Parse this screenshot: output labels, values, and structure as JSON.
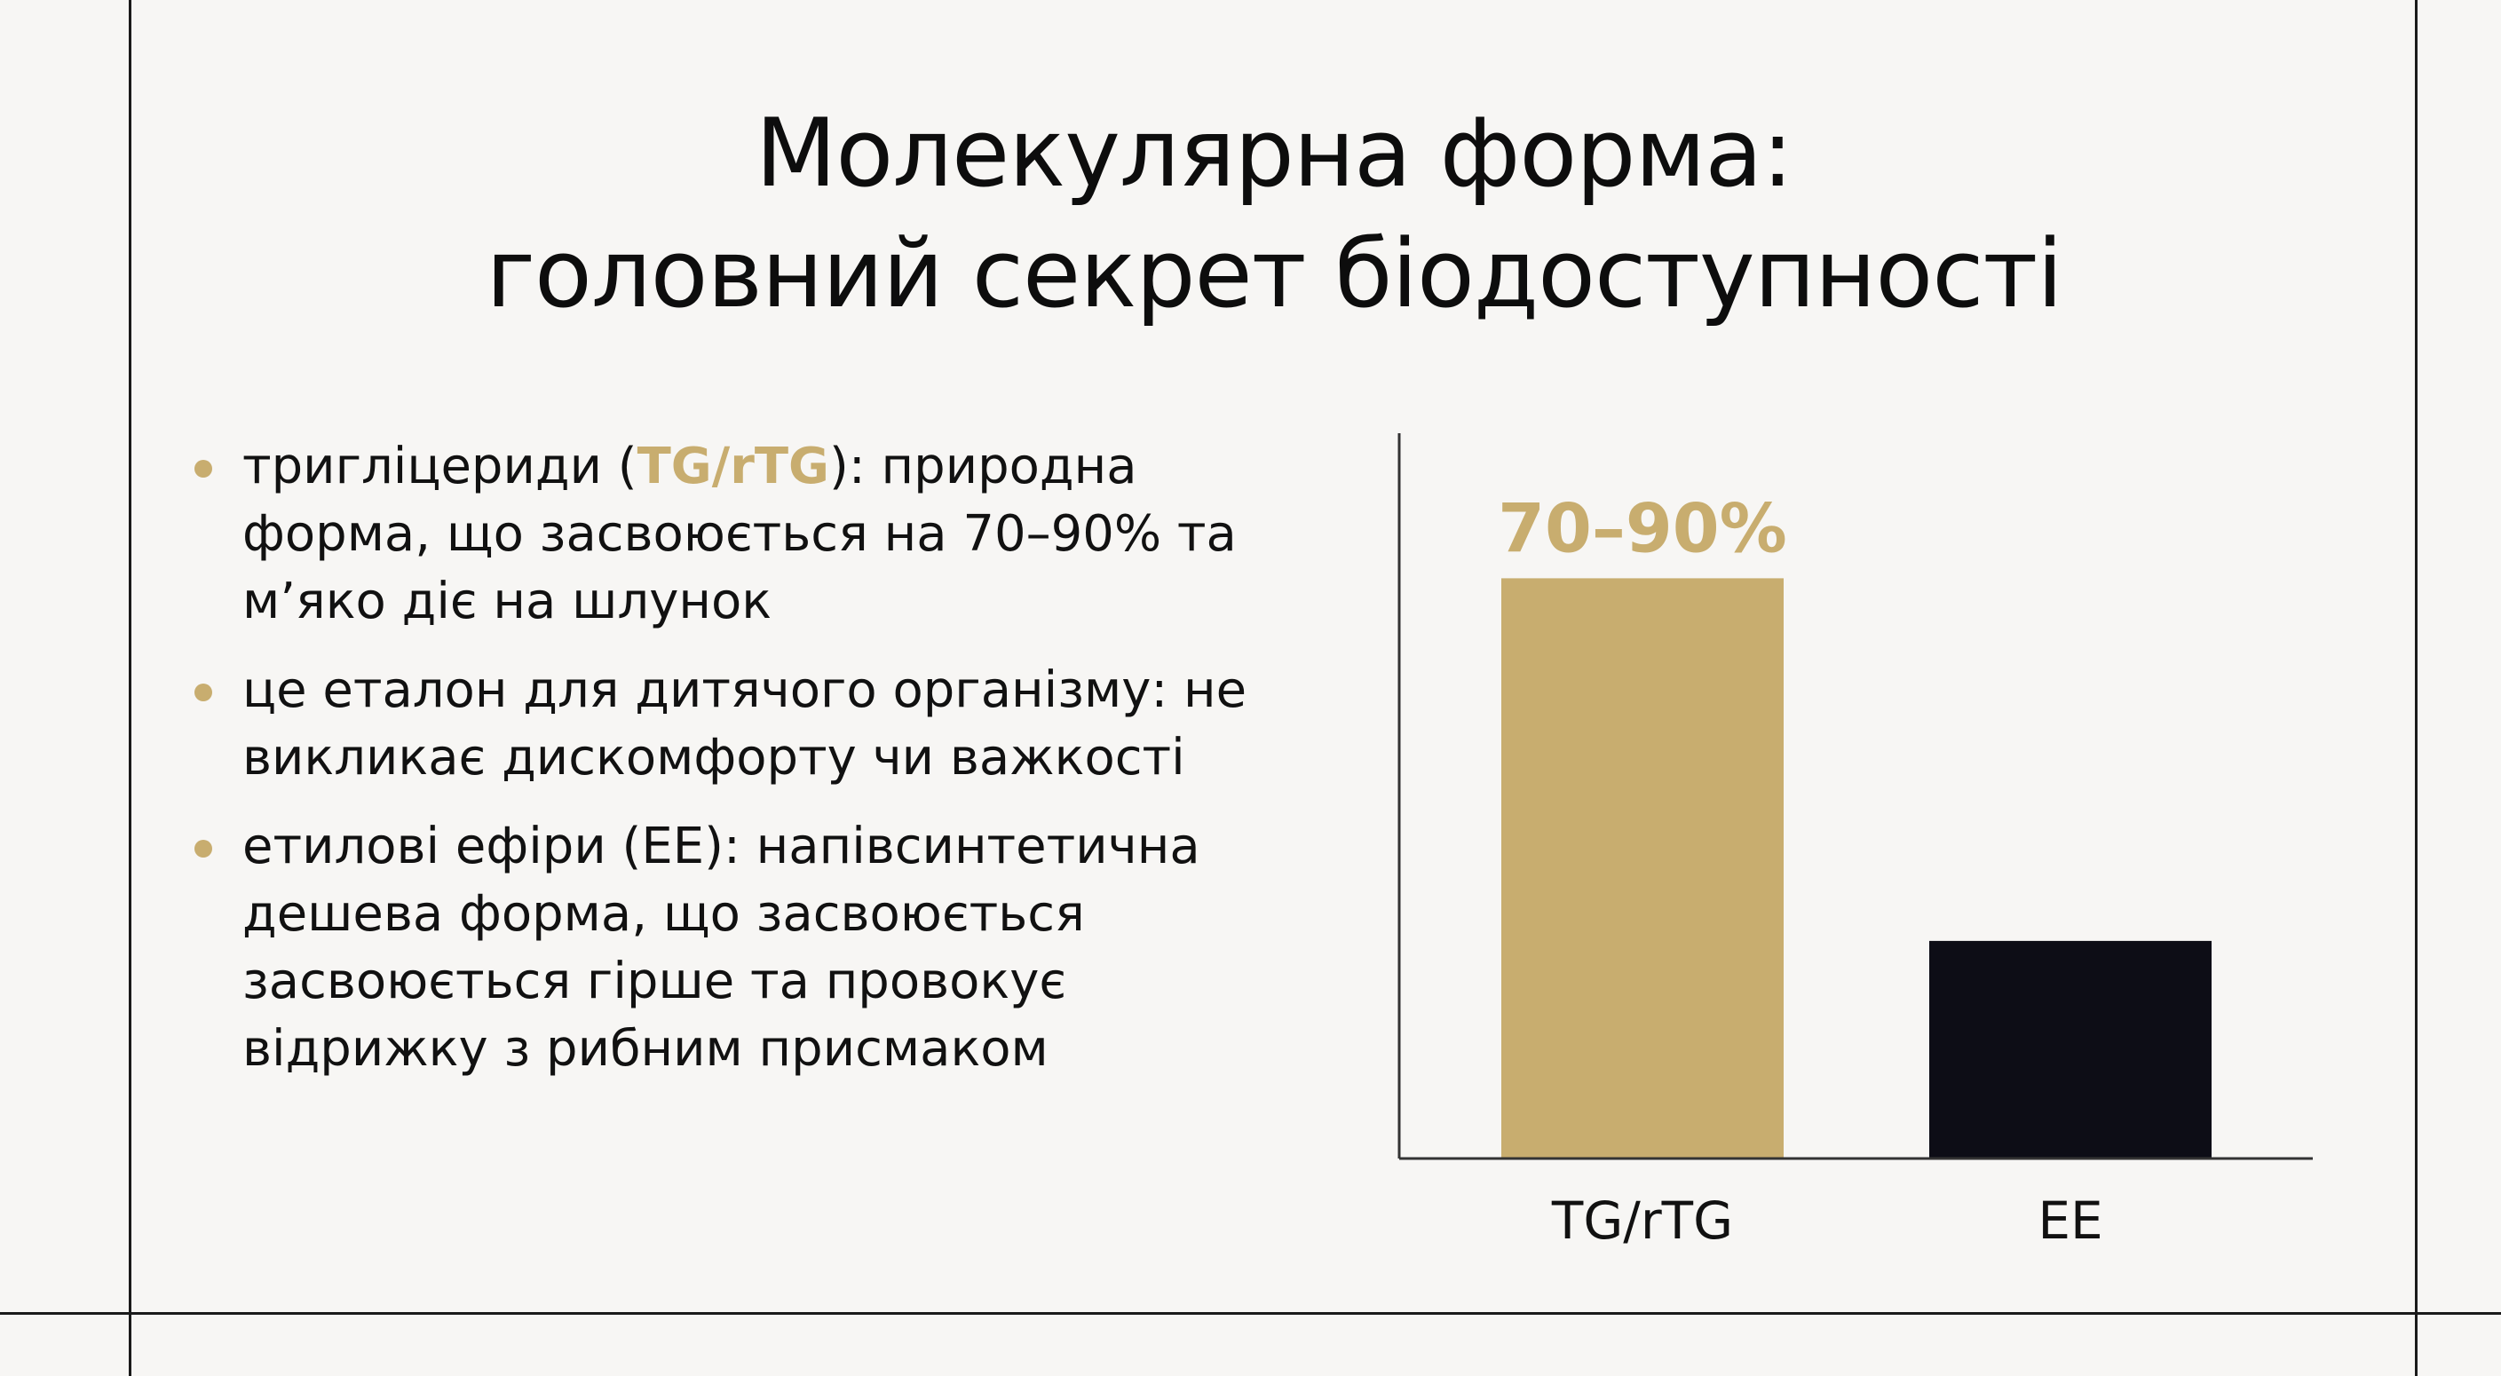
{
  "title": {
    "line1": "Молекулярна форма:",
    "line2": "головний секрет біодоступності"
  },
  "bullets": [
    {
      "before": "тригліцериди (",
      "accent": "TG/rTG",
      "after": "): природна форма, що засвоюється на 70–90% та м’яко діє на шлунок"
    },
    {
      "before": "це еталон для дитячого організму: не викликає дискомфорту чи важкості",
      "accent": "",
      "after": ""
    },
    {
      "before": "етилові ефіри (EE): напівсинтетична дешева форма, що засвоюється засвоюється гірше та провокує відрижку з рибним присмаком",
      "accent": "",
      "after": ""
    }
  ],
  "colors": {
    "accent": "#c8ad6f",
    "dark": "#0d0d16",
    "text": "#111111",
    "background": "#f7f6f4"
  },
  "chart_data": {
    "type": "bar",
    "categories": [
      "TG/rTG",
      "EE"
    ],
    "values": [
      80,
      30
    ],
    "data_labels": [
      "70–90%",
      ""
    ],
    "bar_colors": [
      "#c8ad6f",
      "#0d0d16"
    ],
    "ylim": [
      0,
      100
    ],
    "grid": false,
    "title": "",
    "xlabel": "",
    "ylabel": ""
  }
}
